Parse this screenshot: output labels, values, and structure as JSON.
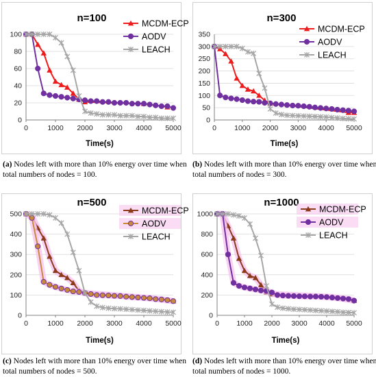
{
  "colors": {
    "mcdm": "#ee1c1c",
    "aodv": "#7030a0",
    "leach": "#a6a6a6",
    "mcdm_c": "#8b3a1a",
    "aodv_c": "#c9893a",
    "highlight": "#f7c6ef"
  },
  "chart_data": [
    {
      "type": "line",
      "title": "n=100",
      "xlabel": "Time(s)",
      "ylabel": "",
      "xlim": [
        0,
        5000
      ],
      "ylim": [
        0,
        100
      ],
      "xticks": [
        "0",
        "1000",
        "2000",
        "3000",
        "4000",
        "5000"
      ],
      "yticks": [
        "0",
        "20",
        "40",
        "60",
        "80",
        "100"
      ],
      "legend_position": "top-right",
      "series": [
        {
          "name": "MCDM-ECP",
          "x": [
            0,
            200,
            400,
            600,
            800,
            1000,
            1200,
            1400,
            1600,
            1800,
            2000,
            4000,
            4800
          ],
          "y": [
            100,
            100,
            88,
            78,
            58,
            45,
            41,
            38,
            31,
            24,
            21,
            19,
            15
          ]
        },
        {
          "name": "AODV",
          "x": [
            0,
            200,
            400,
            600,
            800,
            1000,
            1200,
            1400,
            1600,
            1800,
            2000,
            2200,
            2400,
            2600,
            2800,
            3000,
            3200,
            3400,
            3600,
            3800,
            4000,
            4200,
            4400,
            4600,
            4800,
            5000
          ],
          "y": [
            100,
            100,
            60,
            31,
            29,
            28,
            27,
            26,
            25,
            24,
            23,
            22,
            22,
            21,
            21,
            20,
            20,
            20,
            19,
            19,
            19,
            18,
            17,
            16,
            16,
            14
          ]
        },
        {
          "name": "LEACH",
          "x": [
            0,
            200,
            400,
            600,
            800,
            1000,
            1200,
            1400,
            1600,
            1800,
            2000,
            2200,
            2400,
            2600,
            2800,
            3000,
            3200,
            3400,
            3600,
            3800,
            4000,
            4200,
            4400,
            4600,
            4800,
            5000
          ],
          "y": [
            100,
            100,
            100,
            100,
            100,
            96,
            90,
            74,
            58,
            28,
            10,
            8,
            7,
            6,
            6,
            6,
            5,
            5,
            5,
            4,
            4,
            3,
            3,
            2,
            2,
            2
          ]
        }
      ]
    },
    {
      "type": "line",
      "title": "n=300",
      "xlabel": "Time(s)",
      "ylabel": "",
      "xlim": [
        0,
        5000
      ],
      "ylim": [
        0,
        350
      ],
      "xticks": [
        "0",
        "1000",
        "2000",
        "3000",
        "4000",
        "5000"
      ],
      "yticks": [
        "0",
        "50",
        "100",
        "150",
        "200",
        "250",
        "300",
        "350"
      ],
      "legend_position": "top-right",
      "series": [
        {
          "name": "MCDM-ECP",
          "x": [
            0,
            200,
            400,
            600,
            800,
            1000,
            1200,
            1400,
            1600,
            1800,
            2000,
            4800,
            5000
          ],
          "y": [
            300,
            290,
            270,
            240,
            170,
            140,
            125,
            118,
            100,
            80,
            68,
            30,
            30
          ]
        },
        {
          "name": "AODV",
          "x": [
            0,
            200,
            400,
            600,
            800,
            1000,
            1200,
            1400,
            1600,
            1800,
            2000,
            2200,
            2400,
            2600,
            2800,
            3000,
            3200,
            3400,
            3600,
            3800,
            4000,
            4200,
            4400,
            4600,
            4800,
            5000
          ],
          "y": [
            300,
            100,
            92,
            88,
            85,
            81,
            77,
            75,
            74,
            70,
            68,
            65,
            63,
            61,
            59,
            58,
            56,
            54,
            51,
            49,
            47,
            45,
            42,
            40,
            38,
            35
          ]
        },
        {
          "name": "LEACH",
          "x": [
            0,
            200,
            400,
            600,
            800,
            1000,
            1200,
            1400,
            1600,
            1800,
            2000,
            2200,
            2400,
            2600,
            2800,
            3000,
            3200,
            3400,
            3600,
            3800,
            4000,
            4200,
            4400,
            4600,
            4800,
            5000
          ],
          "y": [
            300,
            300,
            300,
            300,
            300,
            292,
            278,
            272,
            190,
            130,
            45,
            28,
            22,
            19,
            18,
            17,
            16,
            15,
            14,
            13,
            12,
            10,
            8,
            6,
            5,
            4
          ]
        }
      ]
    },
    {
      "type": "line",
      "title": "n=500",
      "xlabel": "Time(s)",
      "ylabel": "",
      "xlim": [
        0,
        5000
      ],
      "ylim": [
        0,
        500
      ],
      "xticks": [
        "0",
        "1000",
        "2000",
        "3000",
        "4000",
        "5000"
      ],
      "yticks": [
        "0",
        "100",
        "200",
        "300",
        "400",
        "500"
      ],
      "legend_position": "top-right",
      "series": [
        {
          "name": "MCDM-ECP",
          "x": [
            0,
            200,
            400,
            600,
            800,
            1000,
            1200,
            1400,
            1600,
            1800,
            2000,
            4200,
            5000
          ],
          "y": [
            500,
            490,
            430,
            380,
            290,
            220,
            200,
            185,
            160,
            120,
            110,
            85,
            70
          ]
        },
        {
          "name": "AODV",
          "x": [
            0,
            200,
            400,
            600,
            800,
            1000,
            1200,
            1400,
            1600,
            1800,
            2000,
            2200,
            2400,
            2600,
            2800,
            3000,
            3200,
            3400,
            3600,
            3800,
            4000,
            4200,
            4400,
            4600,
            4800,
            5000
          ],
          "y": [
            500,
            480,
            340,
            165,
            150,
            140,
            132,
            125,
            118,
            115,
            110,
            105,
            100,
            99,
            98,
            96,
            95,
            92,
            90,
            88,
            86,
            84,
            80,
            78,
            75,
            70
          ]
        },
        {
          "name": "LEACH",
          "x": [
            0,
            200,
            400,
            600,
            800,
            1000,
            1200,
            1400,
            1600,
            1800,
            2000,
            2200,
            2400,
            2600,
            2800,
            3000,
            3200,
            3400,
            3600,
            3800,
            4000,
            4200,
            4400,
            4600,
            4800,
            5000
          ],
          "y": [
            500,
            500,
            500,
            500,
            495,
            480,
            455,
            400,
            310,
            220,
            110,
            65,
            45,
            38,
            35,
            33,
            32,
            30,
            28,
            26,
            24,
            22,
            20,
            18,
            16,
            15
          ]
        }
      ]
    },
    {
      "type": "line",
      "title": "n=1000",
      "xlabel": "Time(s)",
      "ylabel": "",
      "xlim": [
        0,
        5000
      ],
      "ylim": [
        0,
        1000
      ],
      "xticks": [
        "0",
        "1000",
        "2000",
        "3000",
        "4000",
        "5000"
      ],
      "yticks": [
        "0",
        "200",
        "400",
        "600",
        "800",
        "1000"
      ],
      "legend_position": "top-right",
      "series": [
        {
          "name": "MCDM-ECP",
          "x": [
            0,
            200,
            400,
            600,
            800,
            1000,
            1200,
            1400,
            1600,
            1800,
            2000,
            4200,
            5000
          ],
          "y": [
            1000,
            1000,
            880,
            760,
            560,
            440,
            390,
            370,
            300,
            230,
            210,
            180,
            145
          ]
        },
        {
          "name": "AODV",
          "x": [
            0,
            200,
            400,
            600,
            800,
            1000,
            1200,
            1400,
            1600,
            1800,
            2000,
            2200,
            2400,
            2600,
            2800,
            3000,
            3200,
            3400,
            3600,
            3800,
            4000,
            4200,
            4400,
            4600,
            4800,
            5000
          ],
          "y": [
            1000,
            1000,
            600,
            320,
            290,
            275,
            265,
            255,
            245,
            240,
            225,
            200,
            195,
            192,
            190,
            188,
            187,
            185,
            185,
            183,
            180,
            175,
            170,
            165,
            160,
            145
          ]
        },
        {
          "name": "LEACH",
          "x": [
            0,
            200,
            400,
            600,
            800,
            1000,
            1200,
            1400,
            1600,
            1800,
            2000,
            2200,
            2400,
            2600,
            2800,
            3000,
            3200,
            3400,
            3600,
            3800,
            4000,
            4200,
            4400,
            4600,
            4800,
            5000
          ],
          "y": [
            1000,
            1000,
            1000,
            990,
            980,
            960,
            900,
            760,
            590,
            290,
            110,
            80,
            70,
            65,
            60,
            58,
            55,
            52,
            48,
            45,
            42,
            38,
            35,
            30,
            28,
            25
          ]
        }
      ]
    }
  ],
  "captions": [
    {
      "label": "(a)",
      "text": "Nodes left with more than 10% energy over time when total numbers of nodes = 100."
    },
    {
      "label": "(b)",
      "text": "Nodes left with more than 10% energy over time when total numbers of nodes = 300."
    },
    {
      "label": "(c)",
      "text": "Nodes left with more than 10% energy over time when total numbers of nodes = 500."
    },
    {
      "label": "(d)",
      "text": "Nodes left with more than 10% energy over time when total numbers of nodes = 1000."
    }
  ]
}
